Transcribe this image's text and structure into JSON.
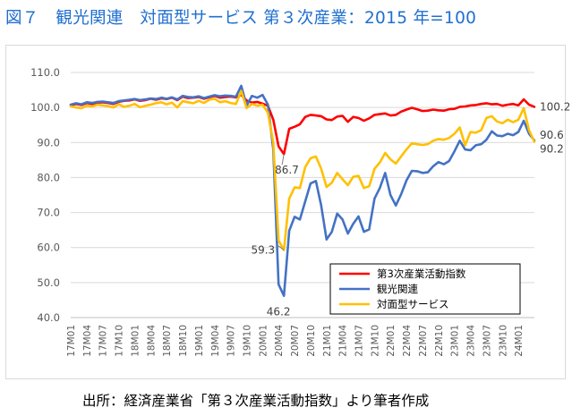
{
  "title": "図７　観光関連　対面型サービス 第３次産業：2015 年=100",
  "source": "出所：経済産業省「第３次産業活動指数」より筆者作成",
  "chart_data": {
    "type": "line",
    "title": "図７　観光関連　対面型サービス 第３次産業：2015 年=100",
    "xlabel": "",
    "ylabel": "",
    "ylim": [
      40,
      110
    ],
    "yticks": [
      "40.0",
      "50.0",
      "60.0",
      "70.0",
      "80.0",
      "90.0",
      "100.0",
      "110.0"
    ],
    "xticks": [
      "17M01",
      "17M04",
      "17M07",
      "17M10",
      "18M01",
      "18M04",
      "18M07",
      "18M10",
      "19M01",
      "19M04",
      "19M07",
      "19M10",
      "20M01",
      "20M04",
      "20M07",
      "20M10",
      "21M01",
      "21M04",
      "21M07",
      "21M10",
      "22M01",
      "22M04",
      "22M07",
      "22M10",
      "23M01",
      "23M04",
      "23M07",
      "23M10",
      "24M01"
    ],
    "grid": true,
    "legend_position": "lower-right",
    "x": [
      "17M01",
      "17M02",
      "17M03",
      "17M04",
      "17M05",
      "17M06",
      "17M07",
      "17M08",
      "17M09",
      "17M10",
      "17M11",
      "17M12",
      "18M01",
      "18M02",
      "18M03",
      "18M04",
      "18M05",
      "18M06",
      "18M07",
      "18M08",
      "18M09",
      "18M10",
      "18M11",
      "18M12",
      "19M01",
      "19M02",
      "19M03",
      "19M04",
      "19M05",
      "19M06",
      "19M07",
      "19M08",
      "19M09",
      "19M10",
      "19M11",
      "19M12",
      "20M01",
      "20M02",
      "20M03",
      "20M04",
      "20M05",
      "20M06",
      "20M07",
      "20M08",
      "20M09",
      "20M10",
      "20M11",
      "20M12",
      "21M01",
      "21M02",
      "21M03",
      "21M04",
      "21M05",
      "21M06",
      "21M07",
      "21M08",
      "21M09",
      "21M10",
      "21M11",
      "21M12",
      "22M01",
      "22M02",
      "22M03",
      "22M04",
      "22M05",
      "22M06",
      "22M07",
      "22M08",
      "22M09",
      "22M10",
      "22M11",
      "22M12",
      "23M01",
      "23M02",
      "23M03",
      "23M04",
      "23M05",
      "23M06",
      "23M07",
      "23M08",
      "23M09",
      "23M10",
      "23M11",
      "23M12",
      "24M01",
      "24M02",
      "24M03",
      "24M04"
    ],
    "series": [
      {
        "name": "第3次産業活動指数",
        "color": "#ff0000",
        "values": [
          100.6,
          101.0,
          100.7,
          101.3,
          101.0,
          101.4,
          101.5,
          101.3,
          101.0,
          101.6,
          101.9,
          102.0,
          102.3,
          101.9,
          102.1,
          102.5,
          102.2,
          102.6,
          102.4,
          102.8,
          102.1,
          103.1,
          102.7,
          102.8,
          103.0,
          102.5,
          102.9,
          103.3,
          102.8,
          103.0,
          103.1,
          102.9,
          103.6,
          102.0,
          101.4,
          101.6,
          101.1,
          100.5,
          96.5,
          88.9,
          86.7,
          93.9,
          94.5,
          95.2,
          97.3,
          97.9,
          97.7,
          97.5,
          96.6,
          96.4,
          97.4,
          97.6,
          95.9,
          97.3,
          97.0,
          96.2,
          96.9,
          97.9,
          98.1,
          98.3,
          97.7,
          97.9,
          98.8,
          99.4,
          99.9,
          99.5,
          99.0,
          99.1,
          99.4,
          99.2,
          99.1,
          99.5,
          99.6,
          100.2,
          100.3,
          100.6,
          100.7,
          101.0,
          101.2,
          100.9,
          101.0,
          100.5,
          100.8,
          101.0,
          100.6,
          102.3,
          100.8,
          100.2
        ]
      },
      {
        "name": "観光関連",
        "color": "#4472c4",
        "values": [
          100.8,
          101.2,
          100.9,
          101.5,
          101.3,
          101.6,
          101.7,
          101.5,
          101.3,
          101.8,
          102.0,
          102.2,
          102.4,
          102.1,
          102.3,
          102.6,
          102.4,
          102.8,
          102.5,
          102.9,
          102.3,
          103.3,
          103.0,
          102.9,
          103.2,
          102.7,
          103.1,
          103.5,
          103.2,
          103.4,
          103.3,
          103.1,
          106.2,
          100.5,
          103.3,
          102.8,
          103.6,
          100.8,
          88.0,
          49.5,
          46.2,
          64.8,
          68.8,
          68.0,
          73.2,
          78.3,
          79.0,
          72.0,
          62.3,
          64.5,
          69.7,
          68.0,
          64.0,
          66.8,
          68.9,
          64.5,
          65.2,
          74.0,
          77.0,
          81.3,
          75.0,
          72.0,
          75.2,
          79.2,
          81.9,
          81.8,
          81.3,
          81.5,
          83.2,
          84.4,
          83.8,
          84.7,
          87.5,
          90.5,
          88.0,
          87.8,
          89.2,
          89.5,
          90.8,
          93.2,
          92.0,
          91.8,
          92.5,
          92.1,
          93.0,
          96.2,
          92.5,
          90.6
        ]
      },
      {
        "name": "対面型サービス",
        "color": "#ffc000",
        "values": [
          100.3,
          100.0,
          99.8,
          100.5,
          100.3,
          100.8,
          100.6,
          100.4,
          100.0,
          100.9,
          100.2,
          100.5,
          101.0,
          100.1,
          100.5,
          100.8,
          101.2,
          101.5,
          100.9,
          101.4,
          100.0,
          101.8,
          101.5,
          101.2,
          101.9,
          101.3,
          102.2,
          102.5,
          101.5,
          101.8,
          101.3,
          101.0,
          104.7,
          99.8,
          101.0,
          100.5,
          100.8,
          98.5,
          90.0,
          62.0,
          59.3,
          74.0,
          77.2,
          77.0,
          83.0,
          85.5,
          86.0,
          82.5,
          77.3,
          78.5,
          81.3,
          79.5,
          77.8,
          80.2,
          80.5,
          77.0,
          77.5,
          82.5,
          84.3,
          87.0,
          85.2,
          84.0,
          86.0,
          88.0,
          89.8,
          89.5,
          89.3,
          89.5,
          90.5,
          91.0,
          90.8,
          91.3,
          92.5,
          94.3,
          89.2,
          93.0,
          92.8,
          93.5,
          97.0,
          97.5,
          96.0,
          95.5,
          96.5,
          95.8,
          96.5,
          99.8,
          93.5,
          90.2
        ]
      }
    ],
    "annotations": [
      {
        "text": "86.7",
        "series": 0,
        "index": 40
      },
      {
        "text": "59.3",
        "series": 2,
        "index": 40
      },
      {
        "text": "46.2",
        "series": 1,
        "index": 40
      },
      {
        "text": "100.2",
        "series": 0,
        "index": 87
      },
      {
        "text": "90.6",
        "series": 1,
        "index": 87
      },
      {
        "text": "90.2",
        "series": 2,
        "index": 87
      }
    ]
  }
}
